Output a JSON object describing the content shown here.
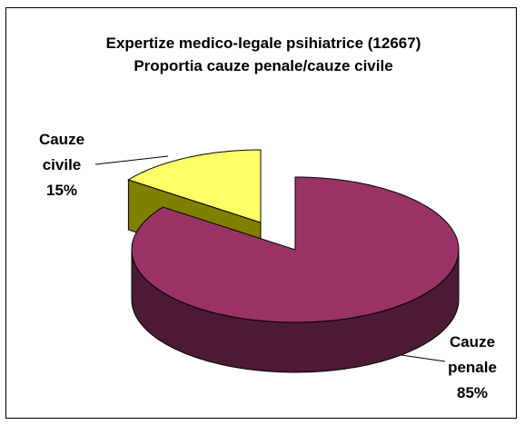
{
  "chart_data": {
    "type": "pie",
    "title": "Expertize medico-legale psihiatrice (12667)",
    "subtitle": "Proportia cauze penale/cauze civile",
    "categories": [
      "Cauze penale",
      "Cauze civile"
    ],
    "values": [
      85,
      15
    ],
    "value_labels": [
      "85%",
      "15%"
    ],
    "colors": [
      "#993366",
      "#ffff66"
    ],
    "side_colors": [
      "#4d1a33",
      "#808000"
    ]
  }
}
